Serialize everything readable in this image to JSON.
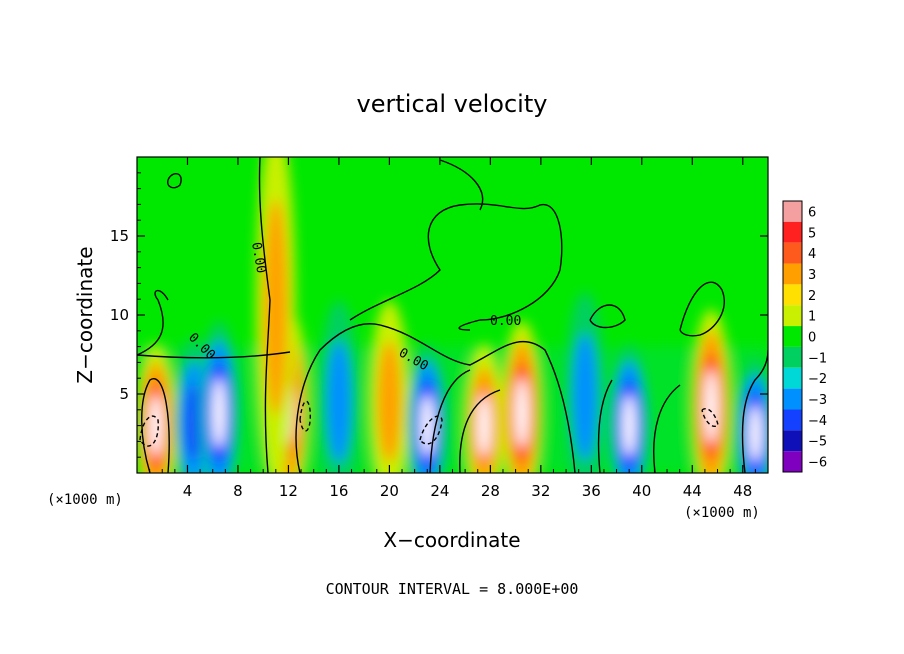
{
  "chart_data": {
    "type": "heatmap",
    "title": "vertical velocity",
    "xlabel": "X−coordinate",
    "ylabel": "Z−coordinate",
    "x_unit_left": "(×1000 m)",
    "x_unit_right": "(×1000 m)",
    "xlim": [
      0,
      50
    ],
    "ylim": [
      0,
      20
    ],
    "x_ticks": [
      "4",
      "8",
      "12",
      "16",
      "20",
      "24",
      "28",
      "32",
      "36",
      "40",
      "44",
      "48"
    ],
    "y_ticks": [
      "5",
      "10",
      "15"
    ],
    "contour_interval": "CONTOUR INTERVAL = 8.000E+00",
    "contour_labels": [
      "0.00",
      "0.00",
      "0.00",
      "0.00"
    ],
    "colorbar": {
      "ticks": [
        "6",
        "5",
        "4",
        "3",
        "2",
        "1",
        "0",
        "−1",
        "−2",
        "−3",
        "−4",
        "−5",
        "−6"
      ],
      "colors": [
        "#f4a0a0",
        "#ff2020",
        "#ff5a1e",
        "#ffa000",
        "#ffe000",
        "#c8f000",
        "#00e800",
        "#00d060",
        "#00d8d8",
        "#0090ff",
        "#1440ff",
        "#1010b8",
        "#8000c0"
      ]
    },
    "features": [
      {
        "x": 1.5,
        "z": 3.0,
        "w": 9,
        "sign": "up"
      },
      {
        "x": 4.5,
        "z": 3.2,
        "w": -6,
        "sign": "down"
      },
      {
        "x": 6.5,
        "z": 3.8,
        "w": -9,
        "sign": "down"
      },
      {
        "x": 12.0,
        "z": 4.2,
        "w": 9,
        "sign": "up"
      },
      {
        "x": 11.0,
        "z": 10.5,
        "w": 4,
        "sign": "up"
      },
      {
        "x": 16.0,
        "z": 4.5,
        "w": -4,
        "sign": "down"
      },
      {
        "x": 20.0,
        "z": 4.5,
        "w": 3,
        "sign": "up"
      },
      {
        "x": 23.0,
        "z": 3.0,
        "w": -9,
        "sign": "down"
      },
      {
        "x": 27.5,
        "z": 3.0,
        "w": 7,
        "sign": "up"
      },
      {
        "x": 30.5,
        "z": 3.8,
        "w": 10,
        "sign": "up"
      },
      {
        "x": 35.5,
        "z": 4.8,
        "w": -5,
        "sign": "down"
      },
      {
        "x": 39.0,
        "z": 3.0,
        "w": -9,
        "sign": "down"
      },
      {
        "x": 45.5,
        "z": 4.2,
        "w": 9,
        "sign": "up"
      },
      {
        "x": 49.0,
        "z": 2.5,
        "w": -9,
        "sign": "down"
      }
    ]
  }
}
